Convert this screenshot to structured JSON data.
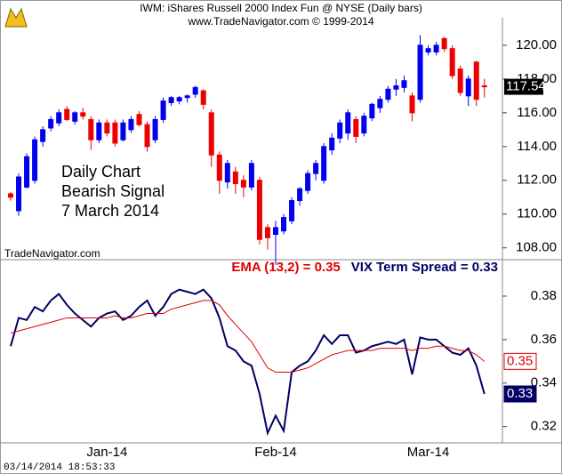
{
  "chart_data": [
    {
      "type": "candlestick",
      "title": "IWM:  iShares Russell 2000 Index Fun @ NYSE  (Daily bars)",
      "subtitle": "www.TradeNavigator.com © 1999-2014",
      "annotations": [
        "Daily Chart",
        "Bearish Signal",
        "7 March 2014"
      ],
      "source": "TradeNavigator.com",
      "up_color": "#0000ee",
      "down_color": "#ee0000",
      "ohlc": [
        [
          111.2,
          111.3,
          110.8,
          111.0
        ],
        [
          110.2,
          112.4,
          109.9,
          112.2
        ],
        [
          111.6,
          113.6,
          111.5,
          113.4
        ],
        [
          112.0,
          114.6,
          111.8,
          114.4
        ],
        [
          114.3,
          115.2,
          114.0,
          115.0
        ],
        [
          115.1,
          115.8,
          114.9,
          115.6
        ],
        [
          115.4,
          116.2,
          115.2,
          116.0
        ],
        [
          116.2,
          116.4,
          115.5,
          115.6
        ],
        [
          115.5,
          116.1,
          115.3,
          116.0
        ],
        [
          116.0,
          116.3,
          115.6,
          115.8
        ],
        [
          115.6,
          115.8,
          113.8,
          114.4
        ],
        [
          114.4,
          115.6,
          114.2,
          115.4
        ],
        [
          115.4,
          115.6,
          114.6,
          114.8
        ],
        [
          115.4,
          115.6,
          114.0,
          114.2
        ],
        [
          114.4,
          115.6,
          114.3,
          115.4
        ],
        [
          115.0,
          115.8,
          114.8,
          115.6
        ],
        [
          115.9,
          116.1,
          115.2,
          115.3
        ],
        [
          115.3,
          115.5,
          113.7,
          114.0
        ],
        [
          114.4,
          115.8,
          114.2,
          115.6
        ],
        [
          115.6,
          116.9,
          115.4,
          116.7
        ],
        [
          116.6,
          117.0,
          116.4,
          116.9
        ],
        [
          116.7,
          117.0,
          116.5,
          116.9
        ],
        [
          116.9,
          117.1,
          116.6,
          117.0
        ],
        [
          117.1,
          117.6,
          116.9,
          117.5
        ],
        [
          117.3,
          117.4,
          116.2,
          116.5
        ],
        [
          116.0,
          116.2,
          112.8,
          113.5
        ],
        [
          113.5,
          113.7,
          111.2,
          112.0
        ],
        [
          111.9,
          113.2,
          111.5,
          113.0
        ],
        [
          112.5,
          112.8,
          111.2,
          111.8
        ],
        [
          112.0,
          112.3,
          111.0,
          111.6
        ],
        [
          111.6,
          113.2,
          111.4,
          113.0
        ],
        [
          112.0,
          112.2,
          108.2,
          108.5
        ],
        [
          109.2,
          109.4,
          107.9,
          108.6
        ],
        [
          108.8,
          109.6,
          107.0,
          109.2
        ],
        [
          109.0,
          110.0,
          108.8,
          109.8
        ],
        [
          109.6,
          111.0,
          109.4,
          110.8
        ],
        [
          110.8,
          111.6,
          110.5,
          111.5
        ],
        [
          111.4,
          112.6,
          111.2,
          112.4
        ],
        [
          112.4,
          113.2,
          112.0,
          113.0
        ],
        [
          112.0,
          114.2,
          111.8,
          114.0
        ],
        [
          113.8,
          114.8,
          113.5,
          114.5
        ],
        [
          114.5,
          115.6,
          114.2,
          115.4
        ],
        [
          114.8,
          116.2,
          114.4,
          116.0
        ],
        [
          115.6,
          115.8,
          114.2,
          114.6
        ],
        [
          114.8,
          116.0,
          114.6,
          115.8
        ],
        [
          115.7,
          116.6,
          115.5,
          116.5
        ],
        [
          116.3,
          117.0,
          116.0,
          116.8
        ],
        [
          116.8,
          117.6,
          116.6,
          117.4
        ],
        [
          117.4,
          118.0,
          117.0,
          117.6
        ],
        [
          117.5,
          118.2,
          117.2,
          117.9
        ],
        [
          117.0,
          117.2,
          115.5,
          116.0
        ],
        [
          116.8,
          120.6,
          116.6,
          120.0
        ],
        [
          119.6,
          120.0,
          119.4,
          119.8
        ],
        [
          119.6,
          120.2,
          119.4,
          120.0
        ],
        [
          120.4,
          120.5,
          119.6,
          119.8
        ],
        [
          119.8,
          120.0,
          118.0,
          118.2
        ],
        [
          118.6,
          118.8,
          117.0,
          117.2
        ],
        [
          117.0,
          118.2,
          116.4,
          118.0
        ],
        [
          119.0,
          119.1,
          116.4,
          116.8
        ],
        [
          117.6,
          118.0,
          116.9,
          117.54
        ]
      ],
      "last_label": "117.54",
      "ylim": [
        107.3,
        121.1
      ],
      "yticks": [
        {
          "value": 108,
          "label": "108.00"
        },
        {
          "value": 110,
          "label": "110.00"
        },
        {
          "value": 112,
          "label": "112.00"
        },
        {
          "value": 114,
          "label": "114.00"
        },
        {
          "value": 116,
          "label": "116.00"
        },
        {
          "value": 118,
          "label": "118.00"
        },
        {
          "value": 120,
          "label": "120.00"
        }
      ]
    },
    {
      "type": "line",
      "categories": [
        null,
        null,
        null,
        null,
        null,
        null,
        null,
        null,
        null,
        null,
        null,
        null,
        "Jan-14",
        null,
        null,
        null,
        null,
        null,
        null,
        null,
        null,
        null,
        null,
        null,
        null,
        null,
        null,
        null,
        null,
        null,
        null,
        null,
        null,
        "Feb-14",
        null,
        null,
        null,
        null,
        null,
        null,
        null,
        null,
        null,
        null,
        null,
        null,
        null,
        null,
        null,
        null,
        null,
        null,
        "Mar-14",
        null,
        null,
        null,
        null,
        null,
        null,
        null
      ],
      "series": [
        {
          "name": "EMA (13,2) = 0.35",
          "color": "#dd0000",
          "values": [
            0.363,
            0.364,
            0.365,
            0.366,
            0.367,
            0.368,
            0.369,
            0.37,
            0.37,
            0.37,
            0.37,
            0.37,
            0.37,
            0.371,
            0.37,
            0.37,
            0.371,
            0.372,
            0.372,
            0.372,
            0.374,
            0.375,
            0.376,
            0.377,
            0.378,
            0.378,
            0.376,
            0.371,
            0.367,
            0.363,
            0.359,
            0.353,
            0.347,
            0.345,
            0.345,
            0.345,
            0.346,
            0.347,
            0.349,
            0.351,
            0.353,
            0.354,
            0.355,
            0.355,
            0.355,
            0.355,
            0.356,
            0.356,
            0.356,
            0.356,
            0.355,
            0.356,
            0.356,
            0.357,
            0.357,
            0.356,
            0.355,
            0.355,
            0.353,
            0.35
          ],
          "last_label": "0.35"
        },
        {
          "name": "VIX Term Spread = 0.33",
          "color": "#000066",
          "values": [
            0.357,
            0.37,
            0.369,
            0.375,
            0.373,
            0.378,
            0.381,
            0.376,
            0.372,
            0.369,
            0.366,
            0.37,
            0.372,
            0.373,
            0.369,
            0.371,
            0.375,
            0.378,
            0.371,
            0.375,
            0.381,
            0.383,
            0.382,
            0.381,
            0.383,
            0.379,
            0.37,
            0.357,
            0.355,
            0.35,
            0.348,
            0.335,
            0.317,
            0.325,
            0.318,
            0.345,
            0.348,
            0.35,
            0.355,
            0.362,
            0.358,
            0.362,
            0.362,
            0.354,
            0.355,
            0.357,
            0.358,
            0.359,
            0.358,
            0.36,
            0.344,
            0.361,
            0.36,
            0.36,
            0.357,
            0.354,
            0.353,
            0.356,
            0.348,
            0.335
          ],
          "last_label": "0.33"
        }
      ],
      "ylim": [
        0.3125,
        0.3935
      ],
      "yticks": [
        0.32,
        0.34,
        0.36,
        0.38
      ],
      "timestamp": "03/14/2014 18:53:33"
    }
  ]
}
